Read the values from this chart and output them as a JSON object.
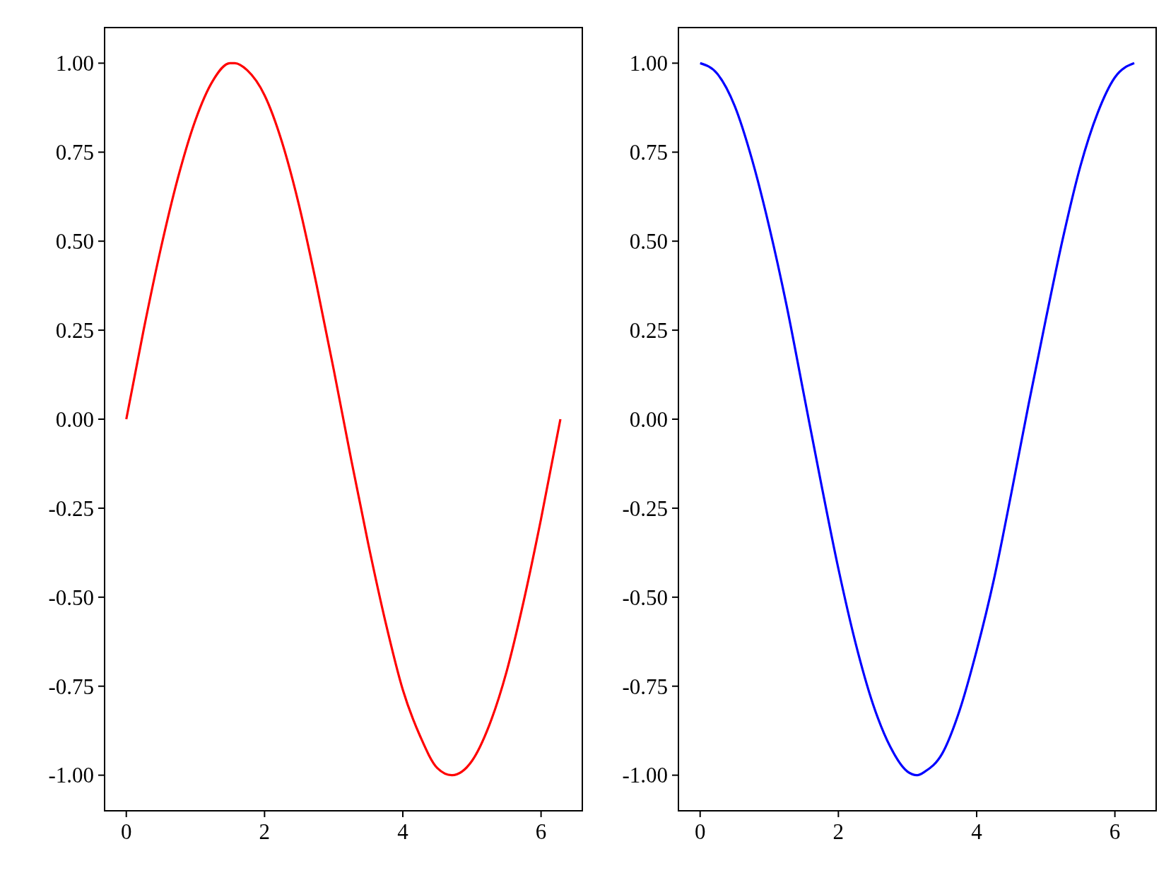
{
  "chart_data": [
    {
      "type": "line",
      "x": [
        0,
        0.25,
        0.5,
        0.75,
        1,
        1.25,
        1.5,
        1.57,
        1.75,
        2,
        2.25,
        2.5,
        2.75,
        3,
        3.25,
        3.5,
        3.75,
        4,
        4.25,
        4.5,
        4.71,
        5,
        5.25,
        5.5,
        5.75,
        6,
        6.28
      ],
      "series": [
        {
          "color": "#ff0000",
          "values": [
            0,
            0.25,
            0.48,
            0.68,
            0.84,
            0.95,
            1.0,
            1.0,
            0.98,
            0.91,
            0.78,
            0.6,
            0.38,
            0.14,
            -0.11,
            -0.35,
            -0.57,
            -0.76,
            -0.89,
            -0.98,
            -1.0,
            -0.96,
            -0.86,
            -0.71,
            -0.51,
            -0.28,
            0
          ]
        }
      ],
      "xlim": [
        -0.314,
        6.597
      ],
      "ylim": [
        -1.1,
        1.1
      ],
      "xticks": [
        0,
        2,
        4,
        6
      ],
      "yticks": [
        {
          "value": -1,
          "label": "-1.00"
        },
        {
          "value": -0.75,
          "label": "-0.75"
        },
        {
          "value": -0.5,
          "label": "-0.50"
        },
        {
          "value": -0.25,
          "label": "-0.25"
        },
        {
          "value": 0,
          "label": "0.00"
        },
        {
          "value": 0.25,
          "label": "0.25"
        },
        {
          "value": 0.5,
          "label": "0.50"
        },
        {
          "value": 0.75,
          "label": "0.75"
        },
        {
          "value": 1,
          "label": "1.00"
        }
      ]
    },
    {
      "type": "line",
      "x": [
        0,
        0.25,
        0.5,
        0.75,
        1,
        1.25,
        1.5,
        1.75,
        2,
        2.25,
        2.5,
        2.75,
        3,
        3.14,
        3.25,
        3.5,
        3.75,
        4,
        4.25,
        4.5,
        4.75,
        5,
        5.25,
        5.5,
        5.75,
        6,
        6.28
      ],
      "series": [
        {
          "color": "#0000ff",
          "values": [
            1,
            0.97,
            0.88,
            0.73,
            0.54,
            0.32,
            0.07,
            -0.18,
            -0.42,
            -0.63,
            -0.8,
            -0.92,
            -0.99,
            -1.0,
            -0.99,
            -0.94,
            -0.82,
            -0.65,
            -0.45,
            -0.21,
            0.04,
            0.28,
            0.51,
            0.71,
            0.86,
            0.96,
            1.0
          ]
        }
      ],
      "xlim": [
        -0.314,
        6.597
      ],
      "ylim": [
        -1.1,
        1.1
      ],
      "xticks": [
        0,
        2,
        4,
        6
      ],
      "yticks": [
        {
          "value": -1,
          "label": "-1.00"
        },
        {
          "value": -0.75,
          "label": "-0.75"
        },
        {
          "value": -0.5,
          "label": "-0.50"
        },
        {
          "value": -0.25,
          "label": "-0.25"
        },
        {
          "value": 0,
          "label": "0.00"
        },
        {
          "value": 0.25,
          "label": "0.25"
        },
        {
          "value": 0.5,
          "label": "0.50"
        },
        {
          "value": 0.75,
          "label": "0.75"
        },
        {
          "value": 1,
          "label": "1.00"
        }
      ]
    }
  ]
}
